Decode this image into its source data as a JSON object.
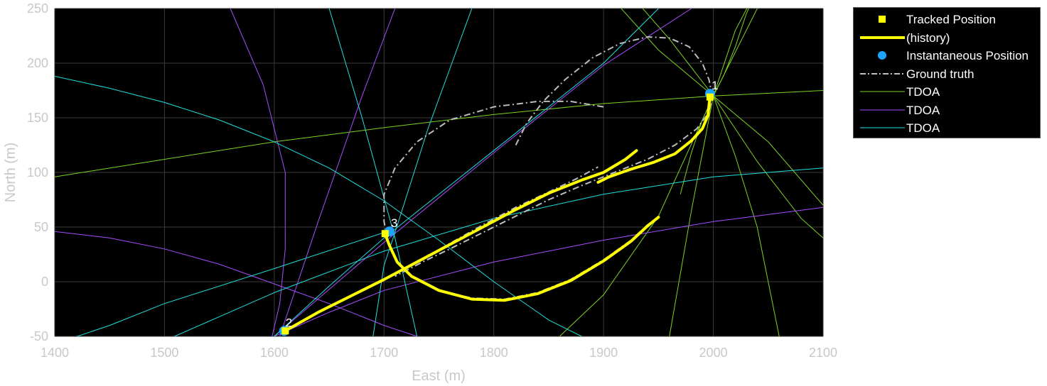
{
  "chart_data": {
    "type": "line",
    "xlabel": "East (m)",
    "ylabel": "North (m)",
    "xlim": [
      1400,
      2100
    ],
    "ylim": [
      -50,
      250
    ],
    "xticks": [
      1400,
      1500,
      1600,
      1700,
      1800,
      1900,
      2000,
      2100
    ],
    "yticks": [
      -50,
      0,
      50,
      100,
      150,
      200,
      250
    ],
    "grid": true,
    "background": "#000000",
    "legend_placement": "outside-top-right",
    "legend": [
      {
        "label": "Tracked Position",
        "marker": "square",
        "color": "#ffff00"
      },
      {
        "label": "(history)",
        "line": "solid",
        "color": "#ffff00"
      },
      {
        "label": "Instantaneous Position",
        "marker": "circle",
        "color": "#1aa3ff"
      },
      {
        "label": "Ground truth",
        "line": "dashdot",
        "color": "#bdbdbd"
      },
      {
        "label": "TDOA",
        "line": "solid",
        "color": "#7ed321"
      },
      {
        "label": "TDOA",
        "line": "solid",
        "color": "#a64dff"
      },
      {
        "label": "TDOA",
        "line": "solid",
        "color": "#1ee0e0"
      }
    ],
    "tracks": [
      {
        "id": "1",
        "tracked_position": [
          1997,
          169
        ],
        "instantaneous_position": [
          1997,
          172
        ]
      },
      {
        "id": "2",
        "tracked_position": [
          1610,
          -45
        ],
        "instantaneous_position": [
          1609,
          -45
        ]
      },
      {
        "id": "3",
        "tracked_position": [
          1701,
          44
        ],
        "instantaneous_position": [
          1705,
          46
        ]
      }
    ],
    "ground_truth": [
      {
        "x": [
          1820,
          1830,
          1845,
          1865,
          1890,
          1915,
          1940,
          1960,
          1978,
          1990,
          1996,
          1999,
          1996,
          1985,
          1965,
          1940,
          1910,
          1880,
          1850,
          1820,
          1790,
          1760,
          1735,
          1710
        ],
        "y": [
          125,
          145,
          165,
          185,
          205,
          218,
          224,
          223,
          215,
          200,
          185,
          170,
          155,
          140,
          125,
          112,
          100,
          88,
          75,
          60,
          45,
          30,
          18,
          5
        ]
      },
      {
        "x": [
          1900,
          1870,
          1840,
          1800,
          1760,
          1730,
          1710,
          1700,
          1700,
          1704,
          1712,
          1725,
          1750,
          1780,
          1810,
          1840,
          1870,
          1900,
          1925,
          1940,
          1950
        ],
        "y": [
          160,
          165,
          165,
          160,
          148,
          128,
          104,
          80,
          55,
          35,
          18,
          5,
          -8,
          -15,
          -16,
          -10,
          2,
          20,
          38,
          52,
          59
        ]
      },
      {
        "x": [
          1610,
          1640,
          1670,
          1700,
          1730,
          1760,
          1790,
          1820,
          1850,
          1875,
          1895
        ],
        "y": [
          -45,
          -28,
          -13,
          2,
          18,
          35,
          52,
          68,
          82,
          94,
          105
        ]
      }
    ],
    "history": [
      {
        "x": [
          1700,
          1705,
          1712,
          1725,
          1750,
          1780,
          1810,
          1840,
          1870,
          1900,
          1925,
          1940,
          1950
        ],
        "y": [
          46,
          33,
          18,
          5,
          -8,
          -16,
          -17,
          -11,
          1,
          19,
          37,
          51,
          59
        ]
      },
      {
        "x": [
          1610,
          1640,
          1670,
          1700,
          1730,
          1760,
          1790,
          1820,
          1850,
          1880,
          1900,
          1920,
          1930
        ],
        "y": [
          -45,
          -28,
          -13,
          2,
          18,
          34,
          50,
          66,
          81,
          93,
          100,
          112,
          120
        ]
      },
      {
        "x": [
          1997,
          1995,
          1990,
          1980,
          1965,
          1945,
          1925,
          1905,
          1895
        ],
        "y": [
          170,
          152,
          140,
          129,
          117,
          109,
          103,
          96,
          91
        ]
      }
    ],
    "tdoa_curves": {
      "green": [
        {
          "x": [
            1400,
            1500,
            1600,
            1700,
            1800,
            1900,
            2000,
            2100
          ],
          "y": [
            96,
            112,
            128,
            141,
            153,
            163,
            170,
            175
          ]
        },
        {
          "x": [
            1900,
            1950,
            2000,
            2050,
            2100
          ],
          "y": [
            268,
            212,
            170,
            128,
            70
          ]
        },
        {
          "x": [
            1920,
            1960,
            2000,
            2040,
            2080,
            2100
          ],
          "y": [
            268,
            222,
            170,
            110,
            58,
            40
          ]
        },
        {
          "x": [
            2040,
            2030,
            2020,
            2010,
            2000,
            1990,
            1980,
            1970
          ],
          "y": [
            268,
            245,
            215,
            190,
            170,
            148,
            118,
            80
          ]
        },
        {
          "x": [
            2060,
            2040,
            2020,
            2000
          ],
          "y": [
            -50,
            50,
            115,
            170
          ]
        },
        {
          "x": [
            1960,
            1980,
            2000,
            2020,
            2040
          ],
          "y": [
            -50,
            65,
            170,
            230,
            268
          ]
        },
        {
          "x": [
            1860,
            1900,
            1950,
            2000,
            2050,
            2100
          ],
          "y": [
            -50,
            -12,
            60,
            170,
            270,
            330
          ]
        }
      ],
      "purple": [
        {
          "x": [
            1560,
            1590,
            1610,
            1610,
            1605,
            1598
          ],
          "y": [
            250,
            180,
            100,
            30,
            -20,
            -50
          ]
        },
        {
          "x": [
            1400,
            1450,
            1500,
            1550,
            1600,
            1650,
            1700,
            1730
          ],
          "y": [
            46,
            40,
            30,
            16,
            -2,
            -20,
            -40,
            -50
          ]
        },
        {
          "x": [
            1600,
            1650,
            1700,
            1800,
            1900,
            2000,
            2100
          ],
          "y": [
            -50,
            -28,
            -8,
            18,
            38,
            55,
            68
          ]
        },
        {
          "x": [
            1600,
            1700,
            1800,
            1900,
            1980
          ],
          "y": [
            -50,
            36,
            118,
            198,
            250
          ]
        },
        {
          "x": [
            1605,
            1640,
            1680,
            1710
          ],
          "y": [
            -50,
            55,
            170,
            250
          ]
        }
      ],
      "cyan": [
        {
          "x": [
            1400,
            1450,
            1500,
            1550,
            1600,
            1650,
            1700,
            1750,
            1800,
            1850,
            1880
          ],
          "y": [
            188,
            177,
            164,
            148,
            128,
            104,
            74,
            38,
            0,
            -35,
            -50
          ]
        },
        {
          "x": [
            1400,
            1500,
            1600,
            1700,
            1800,
            1900,
            2000,
            2100
          ],
          "y": [
            -88,
            -54,
            -10,
            28,
            58,
            80,
            96,
            104
          ]
        },
        {
          "x": [
            1650,
            1680,
            1710,
            1730
          ],
          "y": [
            250,
            150,
            40,
            -50
          ]
        },
        {
          "x": [
            1690,
            1700,
            1710,
            1740,
            1780
          ],
          "y": [
            -50,
            15,
            45,
            140,
            250
          ]
        },
        {
          "x": [
            1600,
            1650,
            1700,
            1800,
            1900,
            1950
          ],
          "y": [
            -50,
            -4,
            40,
            120,
            200,
            250
          ]
        },
        {
          "x": [
            1400,
            1450,
            1500,
            1600,
            1700
          ],
          "y": [
            -57,
            -40,
            -20,
            12,
            45
          ]
        }
      ]
    },
    "colors": {
      "background": "#000000",
      "tracked": "#ffff00",
      "instantaneous": "#1aa3ff",
      "ground_truth": "#bdbdbd",
      "tdoa_green": "#7ed321",
      "tdoa_purple": "#a64dff",
      "tdoa_cyan": "#1ee0e0",
      "axis_text": "#c8c8c8"
    }
  }
}
